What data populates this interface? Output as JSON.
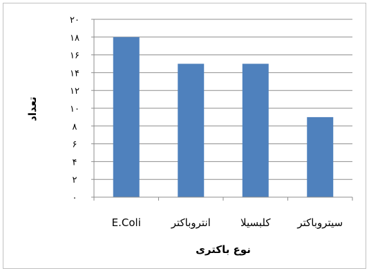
{
  "chart_data": {
    "type": "bar",
    "title": "",
    "categories": [
      "E.Coli",
      "انتروباکتر",
      "کلبسیلا",
      "سیتروباکتر"
    ],
    "values": [
      18,
      15,
      15,
      9
    ],
    "ylabel": "تعداد",
    "xlabel": "نوع باکتری",
    "ylim": [
      0,
      20
    ],
    "yticks": [
      0,
      2,
      4,
      6,
      8,
      10,
      12,
      14,
      16,
      18,
      20
    ],
    "ytick_labels": [
      "۰",
      "۲",
      "۴",
      "۶",
      "۸",
      "۱۰",
      "۱۲",
      "۱۴",
      "۱۶",
      "۱۸",
      "۲۰"
    ],
    "grid": true,
    "bar_color": "#4f81bd",
    "grid_color": "#8c8c8c",
    "axis_color": "#8c8c8c"
  }
}
